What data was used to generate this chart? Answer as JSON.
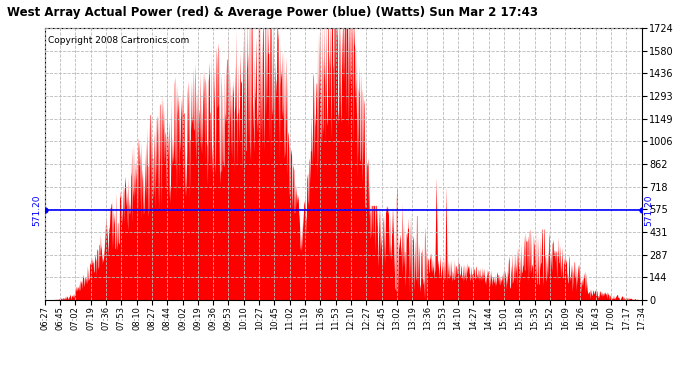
{
  "title": "West Array Actual Power (red) & Average Power (blue) (Watts) Sun Mar 2 17:43",
  "copyright": "Copyright 2008 Cartronics.com",
  "avg_power": 571.2,
  "y_max": 1723.8,
  "y_ticks": [
    0.0,
    143.6,
    287.3,
    430.9,
    574.6,
    718.2,
    861.9,
    1005.5,
    1149.2,
    1292.8,
    1436.5,
    1580.1,
    1723.8
  ],
  "x_labels": [
    "06:27",
    "06:45",
    "07:02",
    "07:19",
    "07:36",
    "07:53",
    "08:10",
    "08:27",
    "08:44",
    "09:02",
    "09:19",
    "09:36",
    "09:53",
    "10:10",
    "10:27",
    "10:45",
    "11:02",
    "11:19",
    "11:36",
    "11:53",
    "12:10",
    "12:27",
    "12:45",
    "13:02",
    "13:19",
    "13:36",
    "13:53",
    "14:10",
    "14:27",
    "14:44",
    "15:01",
    "15:18",
    "15:35",
    "15:52",
    "16:09",
    "16:26",
    "16:43",
    "17:00",
    "17:17",
    "17:34"
  ],
  "bg_color": "#ffffff",
  "plot_bg_color": "#ffffff",
  "grid_color": "#aaaaaa",
  "fill_color": "#ff0000",
  "line_color": "#0000ff",
  "border_color": "#000000"
}
